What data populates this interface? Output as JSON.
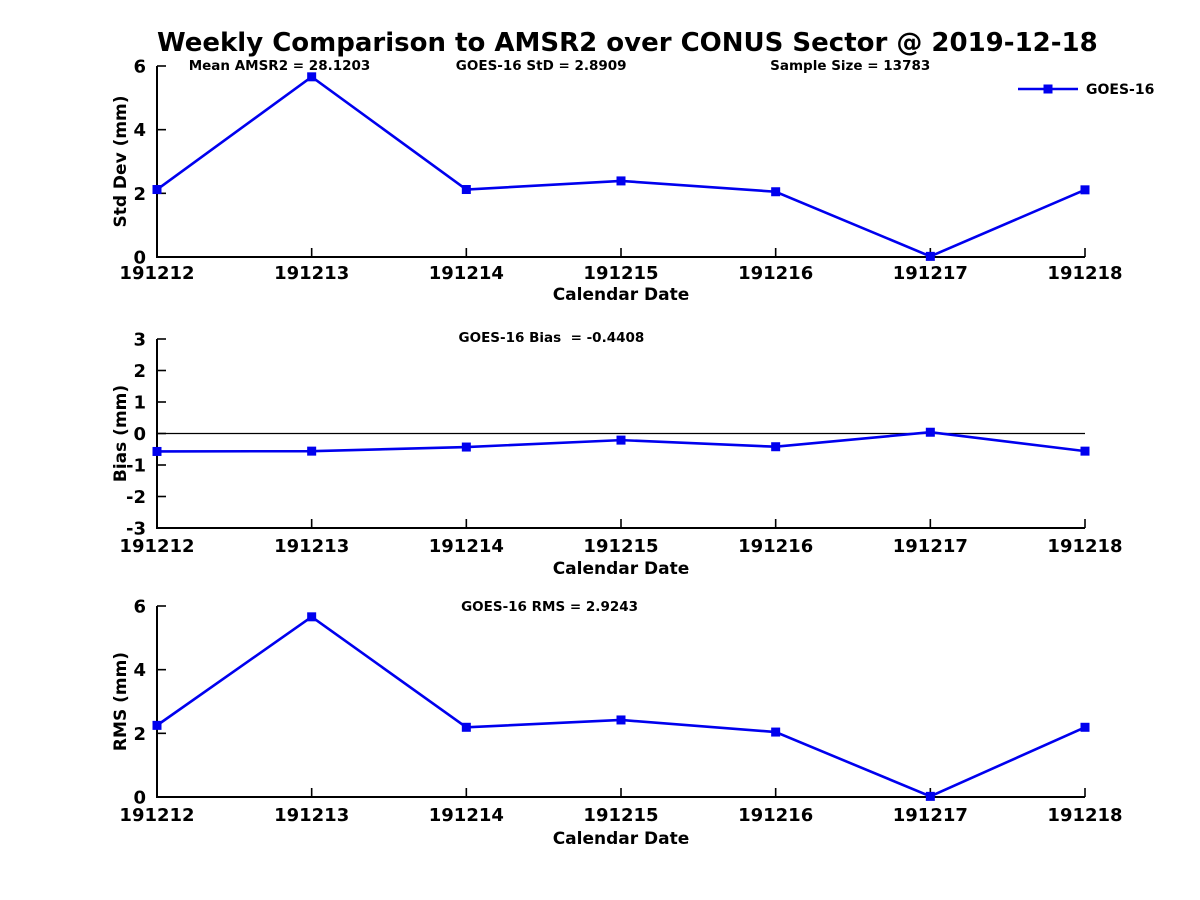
{
  "title": "Weekly Comparison to AMSR2 over CONUS Sector @ 2019-12-18",
  "colors": {
    "line": "#0000EE",
    "axis": "#000000",
    "text": "#000000",
    "background": "#FFFFFF"
  },
  "legend": {
    "label": "GOES-16",
    "position": "top-right"
  },
  "chart_data": [
    {
      "type": "line",
      "ylabel": "Std Dev (mm)",
      "xlabel": "Calendar Date",
      "categories": [
        "191212",
        "191213",
        "191214",
        "191215",
        "191216",
        "191217",
        "191218"
      ],
      "series": [
        {
          "name": "GOES-16",
          "values": [
            2.12,
            5.66,
            2.12,
            2.39,
            2.05,
            0.02,
            2.11
          ]
        }
      ],
      "ylim": [
        0,
        6
      ],
      "yticks": [
        0,
        2,
        4,
        6
      ],
      "grid": false,
      "zero_line": false,
      "legend_visible": true,
      "annotations": [
        {
          "text": "Mean AMSR2 = 28.1203",
          "xf": 0.132
        },
        {
          "text": "GOES-16 StD = 2.8909",
          "xf": 0.414
        },
        {
          "text": "Sample Size = 13783",
          "xf": 0.747
        }
      ]
    },
    {
      "type": "line",
      "ylabel": "Bias (mm)",
      "xlabel": "Calendar Date",
      "categories": [
        "191212",
        "191213",
        "191214",
        "191215",
        "191216",
        "191217",
        "191218"
      ],
      "series": [
        {
          "name": "GOES-16",
          "values": [
            -0.57,
            -0.56,
            -0.43,
            -0.21,
            -0.42,
            0.04,
            -0.56
          ]
        }
      ],
      "ylim": [
        -3,
        3
      ],
      "yticks": [
        -3,
        -2,
        -1,
        0,
        1,
        2,
        3
      ],
      "grid": false,
      "zero_line": true,
      "legend_visible": false,
      "annotations": [
        {
          "text": "GOES-16 Bias  = -0.4408",
          "xf": 0.425
        }
      ]
    },
    {
      "type": "line",
      "ylabel": "RMS (mm)",
      "xlabel": "Calendar Date",
      "categories": [
        "191212",
        "191213",
        "191214",
        "191215",
        "191216",
        "191217",
        "191218"
      ],
      "series": [
        {
          "name": "GOES-16",
          "values": [
            2.25,
            5.66,
            2.19,
            2.42,
            2.04,
            0.02,
            2.19
          ]
        }
      ],
      "ylim": [
        0,
        6
      ],
      "yticks": [
        0,
        2,
        4,
        6
      ],
      "grid": false,
      "zero_line": false,
      "legend_visible": false,
      "annotations": [
        {
          "text": "GOES-16 RMS = 2.9243",
          "xf": 0.423
        }
      ]
    }
  ]
}
